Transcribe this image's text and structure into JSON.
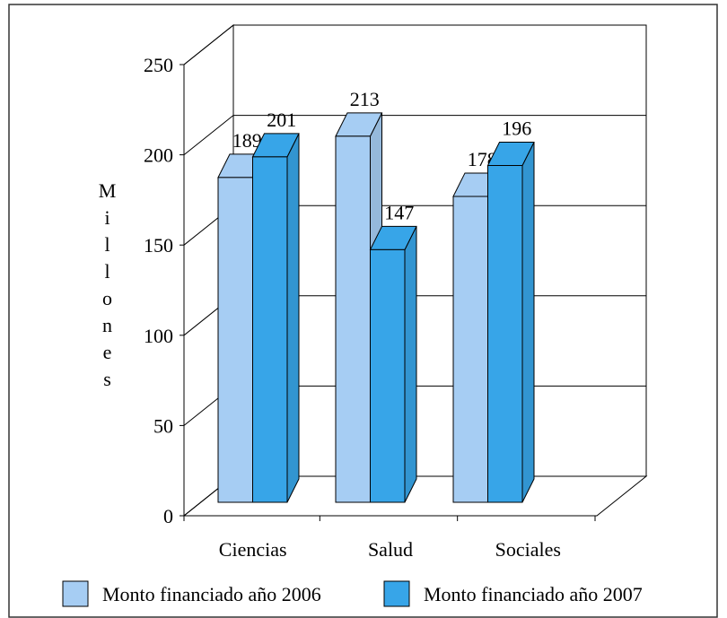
{
  "chart_data": {
    "type": "bar3d",
    "ylabel": "Millones",
    "categories": [
      "Ciencias",
      "Salud",
      "Sociales"
    ],
    "series": [
      {
        "name": "Monto financiado año 2006",
        "color": "#a6cdf3",
        "values": [
          189,
          213,
          178
        ]
      },
      {
        "name": "Monto financiado año 2007",
        "color": "#37a5e8",
        "values": [
          201,
          147,
          196
        ]
      }
    ],
    "ylim": [
      0,
      250
    ],
    "yticks": [
      0,
      50,
      100,
      150,
      200,
      250
    ],
    "grid": true,
    "legend": "bottom"
  }
}
